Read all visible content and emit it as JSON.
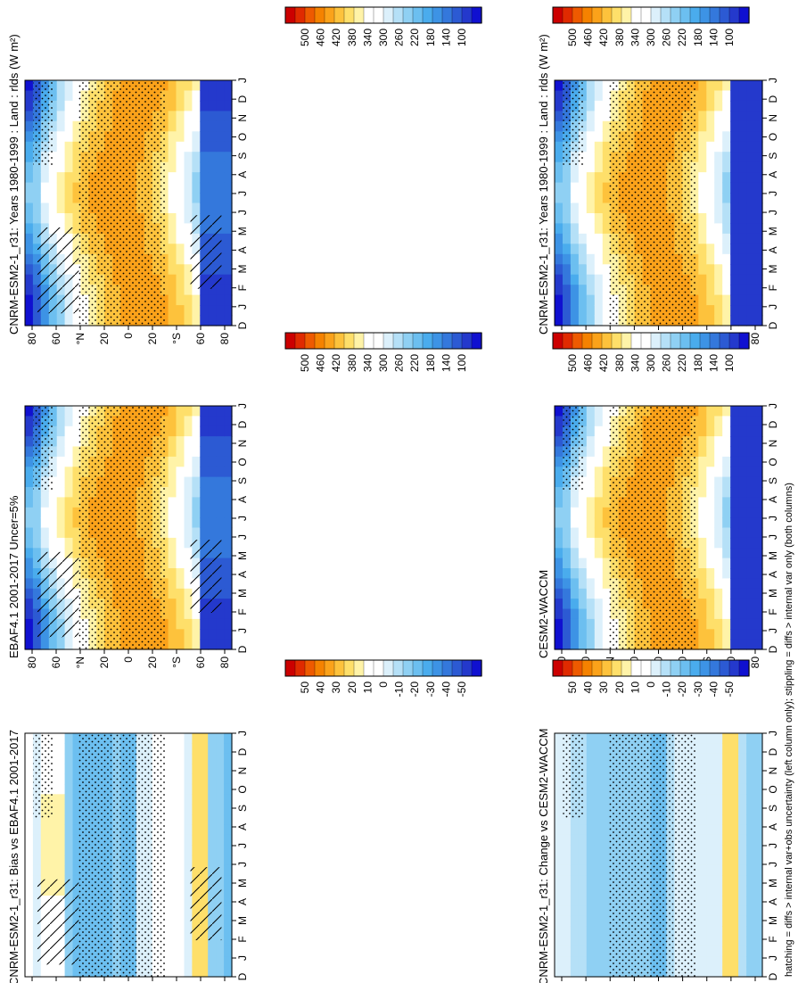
{
  "footnote": "hatching = diffs > internal var+obs uncertainty (left column only); stippling = diffs > internal var only (both columns)",
  "month_labels": [
    "D",
    "J",
    "F",
    "M",
    "A",
    "M",
    "J",
    "J",
    "A",
    "S",
    "O",
    "N",
    "D",
    "J"
  ],
  "lat_labels": [
    "80",
    "60",
    "°N",
    "20",
    "0",
    "20",
    "°S",
    "60",
    "80"
  ],
  "colorbar_abs": {
    "labels": [
      "500",
      "460",
      "420",
      "380",
      "340",
      "300",
      "260",
      "220",
      "180",
      "140",
      "100"
    ],
    "colors": [
      "#cc0000",
      "#e02a00",
      "#ee5a00",
      "#f58200",
      "#fba21a",
      "#fdc23c",
      "#fedf6a",
      "#fff3a8",
      "#ffffff",
      "#ffffff",
      "#dcf0fb",
      "#b5e0f7",
      "#8fd0f3",
      "#6cbff0",
      "#4aaced",
      "#3d93e5",
      "#3478dc",
      "#2c5ad3",
      "#2439cc",
      "#1010d0"
    ]
  },
  "colorbar_diff": {
    "labels": [
      "50",
      "40",
      "30",
      "20",
      "10",
      "0",
      "-10",
      "-20",
      "-30",
      "-40",
      "-50"
    ],
    "colors": [
      "#cc0000",
      "#e02a00",
      "#ee5a00",
      "#f58200",
      "#fba21a",
      "#fdc23c",
      "#fedf6a",
      "#fff3a8",
      "#ffffff",
      "#ffffff",
      "#dcf0fb",
      "#b5e0f7",
      "#8fd0f3",
      "#6cbff0",
      "#4aaced",
      "#3d93e5",
      "#3478dc",
      "#2c5ad3",
      "#2439cc",
      "#1010d0"
    ]
  },
  "chart_data": [
    {
      "type": "heatmap",
      "title": "CNRM-ESM2-1_r31: Years 1980-1999 : Land : rlds (W m-2)",
      "kind": "abs",
      "hatch": true
    },
    {
      "type": "heatmap",
      "title": "CNRM-ESM2-1_r31: Years 1980-1999 : Land : rlds (W m²)",
      "kind": "abs",
      "hatch": false
    },
    {
      "type": "heatmap",
      "title": "EBAF4.1 2001-2017 Uncer=5%",
      "kind": "abs",
      "hatch": true
    },
    {
      "type": "heatmap",
      "title": "CESM2-WACCM",
      "kind": "abs",
      "hatch": false
    },
    {
      "type": "heatmap",
      "title": "CNRM-ESM2-1_r31: Bias vs EBAF4.1 2001-2017",
      "kind": "diff",
      "hatch": true
    },
    {
      "type": "heatmap",
      "title": "CNRM-ESM2-1_r31: Change vs CESM2-WACCM",
      "kind": "diff",
      "hatch": false
    }
  ]
}
